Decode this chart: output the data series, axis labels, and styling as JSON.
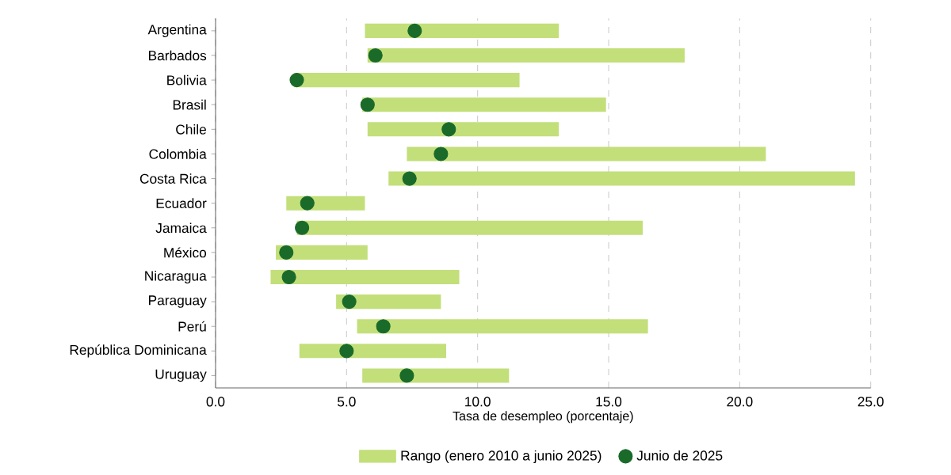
{
  "chart_data": {
    "type": "bar",
    "orientation": "horizontal",
    "xlabel": "Tasa de desempleo (porcentaje)",
    "categories": [
      "Argentina",
      "Barbados",
      "Bolivia",
      "Brasil",
      "Chile",
      "Colombia",
      "Costa Rica",
      "Ecuador",
      "Jamaica",
      "México",
      "Nicaragua",
      "Paraguay",
      "Perú",
      "República Dominicana",
      "Uruguay"
    ],
    "series": [
      {
        "name": "Rango (enero 2010 a junio 2025)",
        "type": "bar",
        "color": "#c2df7a",
        "base": [
          5.7,
          5.8,
          3.0,
          5.6,
          5.8,
          7.3,
          6.6,
          2.7,
          3.1,
          2.3,
          2.1,
          4.6,
          5.4,
          3.2,
          5.6
        ],
        "values": [
          7.4,
          12.1,
          8.6,
          9.3,
          7.3,
          13.7,
          17.8,
          3.0,
          13.2,
          3.5,
          7.2,
          4.0,
          11.1,
          5.6,
          5.6
        ]
      },
      {
        "name": "Junio de 2025",
        "type": "scatter",
        "color": "#1a6b2a",
        "values": [
          7.6,
          6.1,
          3.1,
          5.8,
          8.9,
          8.6,
          7.4,
          3.5,
          3.3,
          2.7,
          2.8,
          5.1,
          6.4,
          5.0,
          7.3
        ]
      }
    ],
    "xlim": [
      0,
      25
    ],
    "xticks": [
      {
        "value": 0,
        "label": "0.0"
      },
      {
        "value": 5,
        "label": "5.0"
      },
      {
        "value": 10,
        "label": "10.0"
      },
      {
        "value": 15,
        "label": "15.0"
      },
      {
        "value": 20,
        "label": "20.0"
      },
      {
        "value": 25,
        "label": "25.0"
      }
    ],
    "grid": "x",
    "legend": "bottom",
    "marker": "circle"
  }
}
